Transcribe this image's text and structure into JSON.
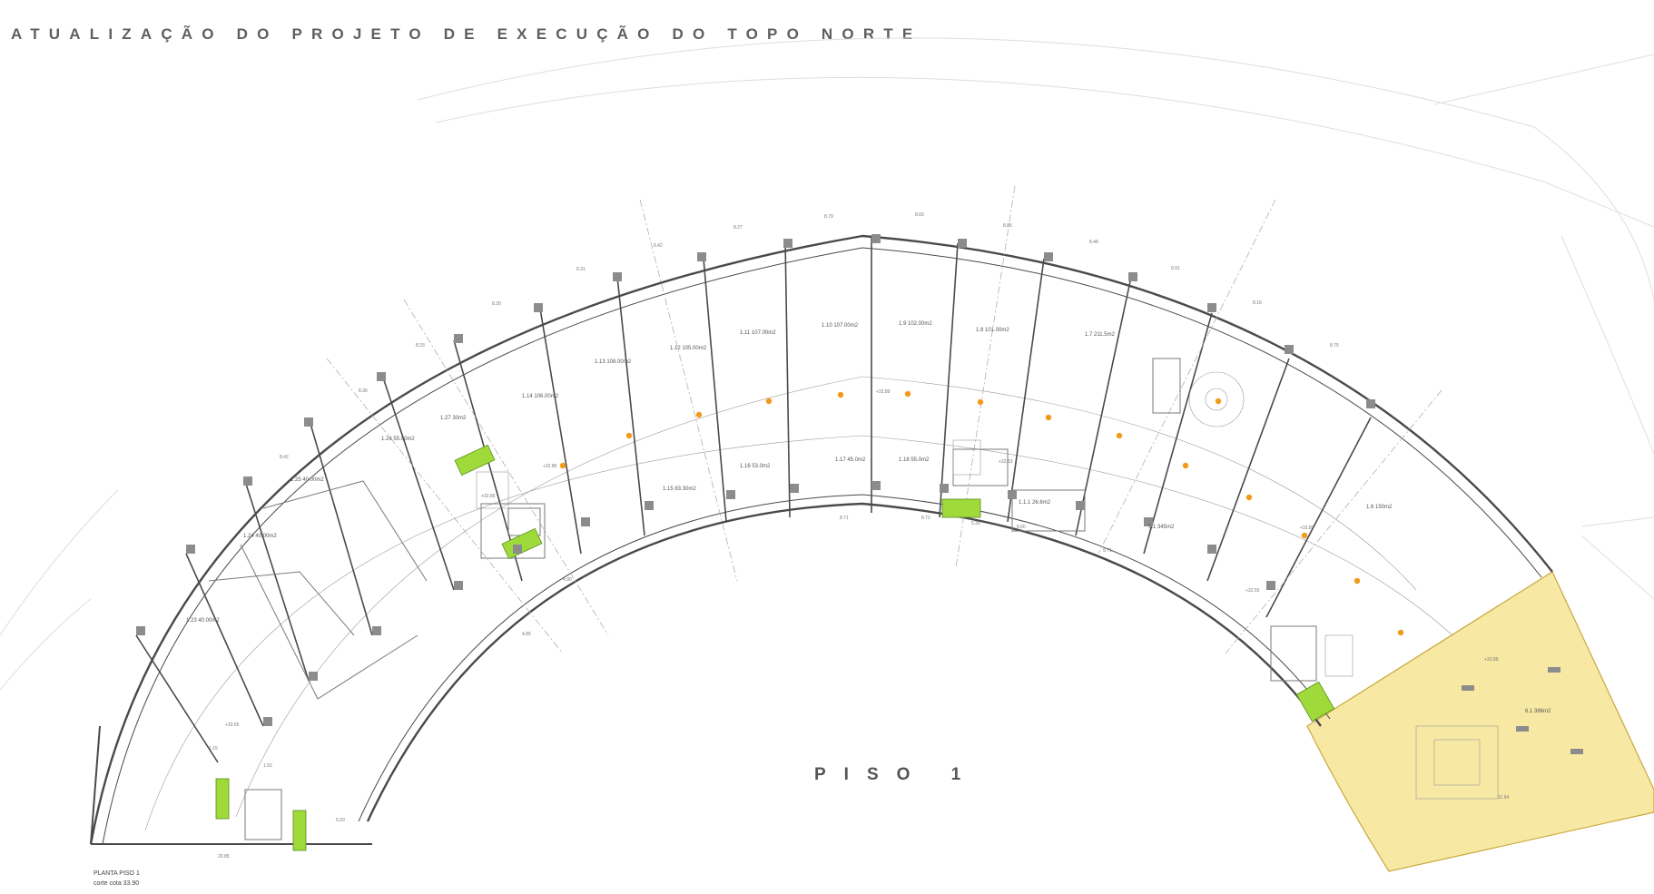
{
  "header": {
    "title": "ATUALIZAÇÃO DO PROJETO DE EXECUÇÃO DO TOPO NORTE"
  },
  "plan": {
    "floor_label": "PISO 1",
    "caption_title": "PLANTA PISO 1",
    "caption_subtitle": "corte cota 33.90",
    "rooms": [
      {
        "id": "1.11",
        "area": "107.00m2"
      },
      {
        "id": "1.10",
        "area": "107.00m2"
      },
      {
        "id": "1.9",
        "area": "102.00m2"
      },
      {
        "id": "1.8",
        "area": "101.00m2"
      },
      {
        "id": "1.7",
        "area": "211.5m2"
      },
      {
        "id": "1.12",
        "area": "105.00m2"
      },
      {
        "id": "1.13",
        "area": "108.00m2"
      },
      {
        "id": "1.14",
        "area": "106.00m2"
      },
      {
        "id": "1.27",
        "area": "30m2"
      },
      {
        "id": "1.26",
        "area": "55.00m2"
      },
      {
        "id": "1.25",
        "area": "40.00m2"
      },
      {
        "id": "1.24",
        "area": "40.00m2"
      },
      {
        "id": "1.23",
        "area": "40.00m2"
      },
      {
        "id": "1.15",
        "area": "83.30m2"
      },
      {
        "id": "1.16",
        "area": "53.0m2"
      },
      {
        "id": "1.17",
        "area": "45.0m2"
      },
      {
        "id": "1.18",
        "area": "55.0m2"
      },
      {
        "id": "1.1.1",
        "area": "26.6m2"
      },
      {
        "id": "5.1",
        "area": "345m2"
      },
      {
        "id": "1.6",
        "area": "150m2"
      },
      {
        "id": "6.1",
        "area": "386m2"
      }
    ],
    "levels": [
      "+32.80",
      "+32.85",
      "+32.89",
      "+32.89",
      "+32.53",
      "+32.89",
      "+32.89",
      "+32.85",
      "+32.85",
      "+32.55",
      "+32.89"
    ],
    "dimensions": [
      "8.27",
      "8.79",
      "8.65",
      "8.85",
      "8.48",
      "9.91",
      "8.16",
      "8.75",
      "8.42",
      "8.31",
      "8.30",
      "8.33",
      "8.36",
      "8.42",
      "8.71",
      "8.72",
      "8.60",
      "9.71",
      "5.30",
      "5.00",
      "11.94",
      "20.85",
      "1.15",
      "1.52",
      "4.90",
      "4.85"
    ],
    "colors": {
      "background": "#ffffff",
      "walls": "#4a4a4a",
      "thin_lines": "#9a9a9a",
      "grid_axis": "#b0b0b0",
      "columns": "#8c8c8c",
      "highlight_zone": "#f7e8a4",
      "highlight_stroke": "#c9a83c",
      "green_fill": "#9edb3a",
      "orange_dot": "#f29a1c",
      "site_lines": "#dcdcdc"
    }
  }
}
